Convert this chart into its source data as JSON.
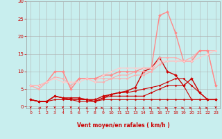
{
  "background_color": "#c8eeee",
  "grid_color": "#b0b0b0",
  "xlabel": "Vent moyen/en rafales ( km/h )",
  "xlim": [
    -0.5,
    23.5
  ],
  "ylim": [
    -0.5,
    30
  ],
  "yticks": [
    0,
    5,
    10,
    15,
    20,
    25,
    30
  ],
  "xticks": [
    0,
    1,
    2,
    3,
    4,
    5,
    6,
    7,
    8,
    9,
    10,
    11,
    12,
    13,
    14,
    15,
    16,
    17,
    18,
    19,
    20,
    21,
    22,
    23
  ],
  "lines": [
    {
      "x": [
        0,
        1,
        2,
        3,
        4,
        5,
        6,
        7,
        8,
        9,
        10,
        11,
        12,
        13,
        14,
        15,
        16,
        17,
        18,
        19,
        20,
        21,
        22,
        23
      ],
      "y": [
        2,
        1.5,
        1.5,
        2,
        2,
        2,
        1.5,
        1.5,
        1.5,
        2,
        2,
        2,
        2,
        2,
        2,
        2,
        2,
        2,
        2,
        2,
        2,
        2,
        2,
        2
      ],
      "color": "#cc0000",
      "lw": 0.8,
      "marker": "D",
      "ms": 1.5
    },
    {
      "x": [
        0,
        1,
        2,
        3,
        4,
        5,
        6,
        7,
        8,
        9,
        10,
        11,
        12,
        13,
        14,
        15,
        16,
        17,
        18,
        19,
        20,
        21,
        22,
        23
      ],
      "y": [
        2,
        1.5,
        1.5,
        3,
        2.5,
        2,
        2,
        2,
        1.5,
        2.5,
        3,
        3,
        3,
        3,
        3,
        4,
        5,
        6,
        6,
        6,
        2,
        2,
        2,
        2
      ],
      "color": "#cc0000",
      "lw": 0.8,
      "marker": "D",
      "ms": 1.5
    },
    {
      "x": [
        0,
        1,
        2,
        3,
        4,
        5,
        6,
        7,
        8,
        9,
        10,
        11,
        12,
        13,
        14,
        15,
        16,
        17,
        18,
        19,
        20,
        21,
        22,
        23
      ],
      "y": [
        2,
        1.5,
        1.5,
        3,
        2.5,
        2,
        2,
        2,
        1.5,
        2.5,
        3.5,
        4,
        4,
        4.5,
        5,
        5.5,
        6,
        7,
        8,
        8,
        6,
        4,
        2,
        2
      ],
      "color": "#cc0000",
      "lw": 0.8,
      "marker": "D",
      "ms": 1.5
    },
    {
      "x": [
        0,
        1,
        2,
        3,
        4,
        5,
        6,
        7,
        8,
        9,
        10,
        11,
        12,
        13,
        14,
        15,
        16,
        17,
        18,
        19,
        20,
        21,
        22,
        23
      ],
      "y": [
        2,
        1.5,
        1.5,
        3,
        2.5,
        2.5,
        2.5,
        2,
        2,
        3,
        3.5,
        4,
        4.5,
        5.5,
        10,
        11,
        14,
        10,
        9,
        6,
        8,
        4,
        2,
        2
      ],
      "color": "#cc0000",
      "lw": 1.0,
      "marker": "D",
      "ms": 2.0
    },
    {
      "x": [
        0,
        1,
        2,
        3,
        4,
        5,
        6,
        7,
        8,
        9,
        10,
        11,
        12,
        13,
        14,
        15,
        16,
        17,
        18,
        19,
        20,
        21,
        22,
        23
      ],
      "y": [
        6,
        5,
        7,
        8.5,
        8,
        6,
        8,
        8,
        7,
        7,
        8,
        8,
        8,
        9,
        9,
        10,
        12,
        13,
        13,
        13,
        14,
        16,
        16,
        16
      ],
      "color": "#ffaaaa",
      "lw": 0.8,
      "marker": "D",
      "ms": 1.5
    },
    {
      "x": [
        0,
        1,
        2,
        3,
        4,
        5,
        6,
        7,
        8,
        9,
        10,
        11,
        12,
        13,
        14,
        15,
        16,
        17,
        18,
        19,
        20,
        21,
        22,
        23
      ],
      "y": [
        6,
        5,
        7,
        10,
        10,
        5,
        8,
        8,
        8,
        8,
        8,
        9,
        9,
        10,
        10,
        10,
        14,
        14,
        14,
        13,
        13,
        16,
        16,
        6
      ],
      "color": "#ffaaaa",
      "lw": 0.8,
      "marker": "D",
      "ms": 1.5
    },
    {
      "x": [
        0,
        1,
        2,
        3,
        4,
        5,
        6,
        7,
        8,
        9,
        10,
        11,
        12,
        13,
        14,
        15,
        16,
        17,
        18,
        19,
        20,
        21,
        22,
        23
      ],
      "y": [
        6,
        6,
        7,
        10,
        10,
        5,
        8,
        8,
        8,
        9,
        9,
        10,
        10,
        10,
        11,
        11,
        26,
        27,
        21,
        13,
        13,
        16,
        16,
        6
      ],
      "color": "#ff8888",
      "lw": 1.0,
      "marker": "D",
      "ms": 2.0
    },
    {
      "x": [
        0,
        1,
        2,
        3,
        4,
        5,
        6,
        7,
        8,
        9,
        10,
        11,
        12,
        13,
        14,
        15,
        16,
        17,
        18,
        19,
        20,
        21,
        22,
        23
      ],
      "y": [
        6,
        6,
        7,
        8,
        7,
        7,
        7,
        8,
        7,
        9,
        10,
        11,
        11,
        11,
        11,
        11,
        13,
        13,
        13,
        13,
        13,
        14,
        15,
        16
      ],
      "color": "#ffcccc",
      "lw": 0.8,
      "marker": "D",
      "ms": 1.5
    }
  ],
  "wind_arrows": {
    "x": [
      0,
      1,
      2,
      3,
      4,
      5,
      6,
      7,
      8,
      9,
      10,
      11,
      12,
      13,
      14,
      15,
      16,
      17,
      18,
      19,
      20,
      21,
      22,
      23
    ],
    "angles": [
      180,
      270,
      180,
      180,
      180,
      180,
      225,
      225,
      270,
      90,
      135,
      135,
      135,
      135,
      135,
      90,
      90,
      90,
      315,
      90,
      90,
      135,
      90,
      180
    ]
  }
}
